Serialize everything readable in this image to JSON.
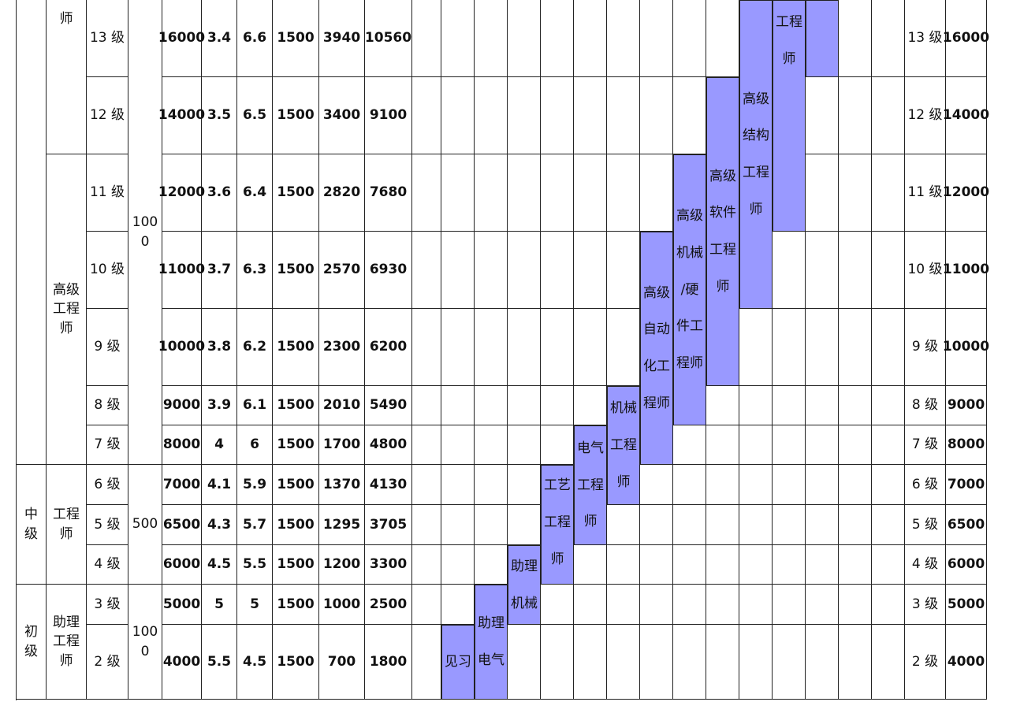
{
  "colors": {
    "bar_fill": "#9999ff",
    "grid_line": "#222222"
  },
  "rows": [
    {
      "level": "13 级",
      "base": "16000",
      "a": "3.4",
      "b": "6.6",
      "c": "1500",
      "d": "3940",
      "e": "10560",
      "base_right": "16000"
    },
    {
      "level": "12 级",
      "base": "14000",
      "a": "3.5",
      "b": "6.5",
      "c": "1500",
      "d": "3400",
      "e": "9100",
      "base_right": "14000"
    },
    {
      "level": "11 级",
      "base": "12000",
      "a": "3.6",
      "b": "6.4",
      "c": "1500",
      "d": "2820",
      "e": "7680",
      "base_right": "12000"
    },
    {
      "level": "10 级",
      "base": "11000",
      "a": "3.7",
      "b": "6.3",
      "c": "1500",
      "d": "2570",
      "e": "6930",
      "base_right": "11000"
    },
    {
      "level": "9 级",
      "base": "10000",
      "a": "3.8",
      "b": "6.2",
      "c": "1500",
      "d": "2300",
      "e": "6200",
      "base_right": "10000"
    },
    {
      "level": "8 级",
      "base": "9000",
      "a": "3.9",
      "b": "6.1",
      "c": "1500",
      "d": "2010",
      "e": "5490",
      "base_right": "9000"
    },
    {
      "level": "7 级",
      "base": "8000",
      "a": "4",
      "b": "6",
      "c": "1500",
      "d": "1700",
      "e": "4800",
      "base_right": "8000"
    },
    {
      "level": "6 级",
      "base": "7000",
      "a": "4.1",
      "b": "5.9",
      "c": "1500",
      "d": "1370",
      "e": "4130",
      "base_right": "7000"
    },
    {
      "level": "5 级",
      "base": "6500",
      "a": "4.3",
      "b": "5.7",
      "c": "1500",
      "d": "1295",
      "e": "3705",
      "base_right": "6500"
    },
    {
      "level": "4 级",
      "base": "6000",
      "a": "4.5",
      "b": "5.5",
      "c": "1500",
      "d": "1200",
      "e": "3300",
      "base_right": "6000"
    },
    {
      "level": "3 级",
      "base": "5000",
      "a": "5",
      "b": "5",
      "c": "1500",
      "d": "1000",
      "e": "2500",
      "base_right": "5000"
    },
    {
      "level": "2 级",
      "base": "4000",
      "a": "5.5",
      "b": "4.5",
      "c": "1500",
      "d": "700",
      "e": "1800",
      "base_right": "4000"
    }
  ],
  "grades": [
    {
      "label": "中\n级"
    },
    {
      "label": "初\n级"
    }
  ],
  "titles": [
    {
      "label": "师"
    },
    {
      "label": "高级\n工程\n师"
    },
    {
      "label": "工程\n师"
    },
    {
      "label": "助理\n工程\n师"
    }
  ],
  "steps": [
    {
      "label": "100\n0"
    },
    {
      "label": "500"
    },
    {
      "label": "100\n0"
    }
  ],
  "tracks": [
    {
      "label": "见习"
    },
    {
      "label": "助理\n电气"
    },
    {
      "label": "助理\n机械"
    },
    {
      "label": "工艺\n工程\n师"
    },
    {
      "label": "电气\n工程\n师"
    },
    {
      "label": "机械\n工程\n师"
    },
    {
      "label": "高级\n自动\n化工\n程师"
    },
    {
      "label": "高级\n机械\n/硬\n件工\n程师"
    },
    {
      "label": "高级\n软件\n工程\n师"
    },
    {
      "label": "高级\n结构\n工程\n师"
    },
    {
      "label": "工程\n师"
    },
    {
      "label": ""
    }
  ]
}
